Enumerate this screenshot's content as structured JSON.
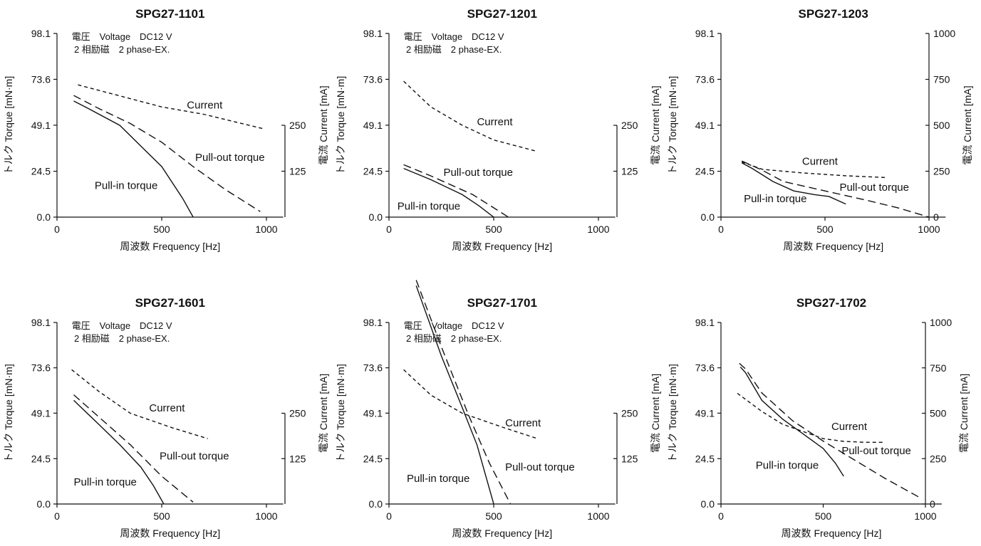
{
  "chart_data": [
    {
      "type": "line",
      "title": "SPG27-1101",
      "xlabel": "周波数 Frequency [Hz]",
      "ylabel": "トルク Torque [mN·m]",
      "y2label": "電流 Current [mA]",
      "xlim": [
        0,
        1000
      ],
      "xticks": [
        0,
        500,
        1000
      ],
      "yticks": [
        "0.0",
        "24.5",
        "49.1",
        "73.6",
        "98.1"
      ],
      "ylim": [
        0,
        98.1
      ],
      "y2ticks": [
        "125",
        "250"
      ],
      "y2lim": [
        0,
        500
      ],
      "conditions": [
        "電圧　Voltage　DC12 V",
        "2 相励磁　2 phase-EX."
      ],
      "series": [
        {
          "name": "Pull-in torque",
          "style": "solid",
          "axis": "left",
          "x": [
            80,
            150,
            300,
            400,
            500,
            600,
            650
          ],
          "y": [
            62,
            58,
            49,
            38,
            27,
            10,
            0
          ]
        },
        {
          "name": "Pull-out torque",
          "style": "dashed",
          "axis": "left",
          "x": [
            80,
            200,
            350,
            500,
            650,
            800,
            970
          ],
          "y": [
            65,
            58,
            50,
            40,
            27,
            15,
            3
          ]
        },
        {
          "name": "Current",
          "style": "dotted",
          "axis": "right",
          "x": [
            100,
            300,
            500,
            700,
            990
          ],
          "y": [
            360,
            330,
            300,
            280,
            240
          ]
        }
      ],
      "annotations": [
        {
          "text": "Pull-in torque",
          "x": 180,
          "y": 15
        },
        {
          "text": "Pull-out torque",
          "x": 660,
          "y": 30
        },
        {
          "text": "Current",
          "x": 620,
          "y": 58
        }
      ]
    },
    {
      "type": "line",
      "title": "SPG27-1201",
      "xlabel": "周波数 Frequency [Hz]",
      "ylabel": "トルク Torque [mN·m]",
      "y2label": "電流 Current [mA]",
      "xlim": [
        0,
        1000
      ],
      "xticks": [
        0,
        500,
        1000
      ],
      "yticks": [
        "0.0",
        "24.5",
        "49.1",
        "73.6",
        "98.1"
      ],
      "ylim": [
        0,
        98.1
      ],
      "y2ticks": [
        "125",
        "250"
      ],
      "y2lim": [
        0,
        500
      ],
      "conditions": [
        "電圧　Voltage　DC12 V",
        "2 相励磁　2 phase-EX."
      ],
      "series": [
        {
          "name": "Pull-in torque",
          "style": "solid",
          "axis": "left",
          "x": [
            70,
            200,
            350,
            430,
            500
          ],
          "y": [
            26,
            20,
            12,
            6,
            0
          ]
        },
        {
          "name": "Pull-out torque",
          "style": "dashed",
          "axis": "left",
          "x": [
            70,
            200,
            400,
            500,
            570
          ],
          "y": [
            28,
            22,
            12,
            5,
            0
          ]
        },
        {
          "name": "Current",
          "style": "dotted",
          "axis": "right",
          "x": [
            70,
            200,
            350,
            500,
            700
          ],
          "y": [
            370,
            300,
            250,
            210,
            180
          ]
        }
      ],
      "annotations": [
        {
          "text": "Pull-in torque",
          "x": 40,
          "y": 4
        },
        {
          "text": "Pull-out torque",
          "x": 260,
          "y": 22
        },
        {
          "text": "Current",
          "x": 420,
          "y": 49
        }
      ]
    },
    {
      "type": "line",
      "title": "SPG27-1203",
      "xlabel": "周波数 Frequency [Hz]",
      "ylabel": "トルク Torque [mN·m]",
      "y2label": "電流 Current [mA]",
      "xlim": [
        0,
        1000
      ],
      "xticks": [
        0,
        500,
        1000
      ],
      "yticks": [
        "0.0",
        "24.5",
        "49.1",
        "73.6",
        "98.1"
      ],
      "ylim": [
        0,
        98.1
      ],
      "y2ticks": [
        "0",
        "250",
        "500",
        "750",
        "1000"
      ],
      "y2lim": [
        0,
        1000
      ],
      "conditions": [],
      "series": [
        {
          "name": "Pull-in torque",
          "style": "solid",
          "axis": "left",
          "x": [
            100,
            150,
            250,
            350,
            450,
            520,
            600
          ],
          "y": [
            29,
            26,
            19,
            14,
            12,
            11,
            7
          ]
        },
        {
          "name": "Pull-out torque",
          "style": "dashed",
          "axis": "left",
          "x": [
            100,
            200,
            300,
            500,
            700,
            850,
            1000
          ],
          "y": [
            30,
            25,
            19,
            14,
            9,
            5,
            0
          ]
        },
        {
          "name": "Current",
          "style": "dotted",
          "axis": "right",
          "x": [
            100,
            200,
            400,
            600,
            800
          ],
          "y": [
            300,
            260,
            240,
            225,
            215
          ]
        }
      ],
      "annotations": [
        {
          "text": "Pull-in torque",
          "x": 110,
          "y": 8
        },
        {
          "text": "Pull-out torque",
          "x": 570,
          "y": 14
        },
        {
          "text": "Current",
          "x": 390,
          "y": 28
        }
      ]
    },
    {
      "type": "line",
      "title": "SPG27-1601",
      "xlabel": "周波数 Frequency [Hz]",
      "ylabel": "トルク Torque [mN·m]",
      "y2label": "電流 Current [mA]",
      "xlim": [
        0,
        1000
      ],
      "xticks": [
        0,
        500,
        1000
      ],
      "yticks": [
        "0.0",
        "24.5",
        "49.1",
        "73.6",
        "98.1"
      ],
      "ylim": [
        0,
        98.1
      ],
      "y2ticks": [
        "125",
        "250"
      ],
      "y2lim": [
        0,
        500
      ],
      "conditions": [
        "電圧　Voltage　DC12 V",
        "2 相励磁　2 phase-EX."
      ],
      "series": [
        {
          "name": "Pull-in torque",
          "style": "solid",
          "axis": "left",
          "x": [
            80,
            200,
            300,
            400,
            460,
            510
          ],
          "y": [
            56,
            43,
            32,
            20,
            10,
            0
          ]
        },
        {
          "name": "Pull-out torque",
          "style": "dashed",
          "axis": "left",
          "x": [
            80,
            200,
            350,
            500,
            650
          ],
          "y": [
            59,
            47,
            32,
            15,
            1
          ]
        },
        {
          "name": "Current",
          "style": "dotted",
          "axis": "right",
          "x": [
            70,
            200,
            350,
            550,
            720
          ],
          "y": [
            370,
            310,
            250,
            210,
            180
          ]
        }
      ],
      "annotations": [
        {
          "text": "Pull-in torque",
          "x": 80,
          "y": 10
        },
        {
          "text": "Pull-out torque",
          "x": 490,
          "y": 24
        },
        {
          "text": "Current",
          "x": 440,
          "y": 50
        }
      ]
    },
    {
      "type": "line",
      "title": "SPG27-1701",
      "xlabel": "周波数 Frequency [Hz]",
      "ylabel": "トルク Torque [mN·m]",
      "y2label": "電流 Current [mA]",
      "xlim": [
        0,
        1000
      ],
      "xticks": [
        0,
        500,
        1000
      ],
      "yticks": [
        "0.0",
        "24.5",
        "49.1",
        "73.6",
        "98.1"
      ],
      "ylim": [
        0,
        98.1
      ],
      "y2ticks": [
        "125",
        "250"
      ],
      "y2lim": [
        0,
        500
      ],
      "conditions": [
        "電圧　Voltage　DC12 V",
        "2 相励磁　2 phase-EX."
      ],
      "series": [
        {
          "name": "Pull-in torque",
          "style": "solid",
          "axis": "left",
          "x": [
            130,
            250,
            350,
            420,
            500
          ],
          "y": [
            118,
            80,
            52,
            32,
            0
          ]
        },
        {
          "name": "Pull-out torque",
          "style": "dashed",
          "axis": "left",
          "x": [
            130,
            250,
            380,
            480,
            580
          ],
          "y": [
            121,
            85,
            48,
            22,
            0
          ]
        },
        {
          "name": "Current",
          "style": "dotted",
          "axis": "right",
          "x": [
            70,
            200,
            350,
            550,
            710
          ],
          "y": [
            370,
            300,
            250,
            210,
            180
          ]
        }
      ],
      "annotations": [
        {
          "text": "Pull-in torque",
          "x": 85,
          "y": 12
        },
        {
          "text": "Pull-out torque",
          "x": 555,
          "y": 18
        },
        {
          "text": "Current",
          "x": 555,
          "y": 42
        }
      ]
    },
    {
      "type": "line",
      "title": "SPG27-1702",
      "xlabel": "周波数 Frequency [Hz]",
      "ylabel": "トルク Torque [mN·m]",
      "y2label": "電流 Current [mA]",
      "xlim": [
        0,
        1000
      ],
      "xticks": [
        0,
        500,
        1000
      ],
      "yticks": [
        "0.0",
        "24.5",
        "49.1",
        "73.6",
        "98.1"
      ],
      "ylim": [
        0,
        98.1
      ],
      "y2ticks": [
        "0",
        "250",
        "500",
        "750",
        "1000"
      ],
      "y2lim": [
        0,
        1000
      ],
      "conditions": [],
      "series": [
        {
          "name": "Pull-in torque",
          "style": "solid",
          "axis": "left",
          "x": [
            95,
            120,
            200,
            300,
            400,
            500,
            560,
            600
          ],
          "y": [
            74,
            71,
            56,
            46,
            38,
            30,
            22,
            15
          ]
        },
        {
          "name": "Pull-out torque",
          "style": "dashed",
          "axis": "left",
          "x": [
            90,
            120,
            200,
            350,
            500,
            650,
            800,
            980
          ],
          "y": [
            76,
            73,
            60,
            45,
            34,
            24,
            14,
            3
          ]
        },
        {
          "name": "Current",
          "style": "dotted",
          "axis": "right",
          "x": [
            80,
            200,
            300,
            400,
            500,
            600,
            700,
            800
          ],
          "y": [
            610,
            510,
            440,
            400,
            360,
            345,
            340,
            340
          ]
        }
      ],
      "annotations": [
        {
          "text": "Pull-in torque",
          "x": 170,
          "y": 19
        },
        {
          "text": "Pull-out torque",
          "x": 590,
          "y": 27
        },
        {
          "text": "Current",
          "x": 540,
          "y": 40
        }
      ]
    }
  ]
}
